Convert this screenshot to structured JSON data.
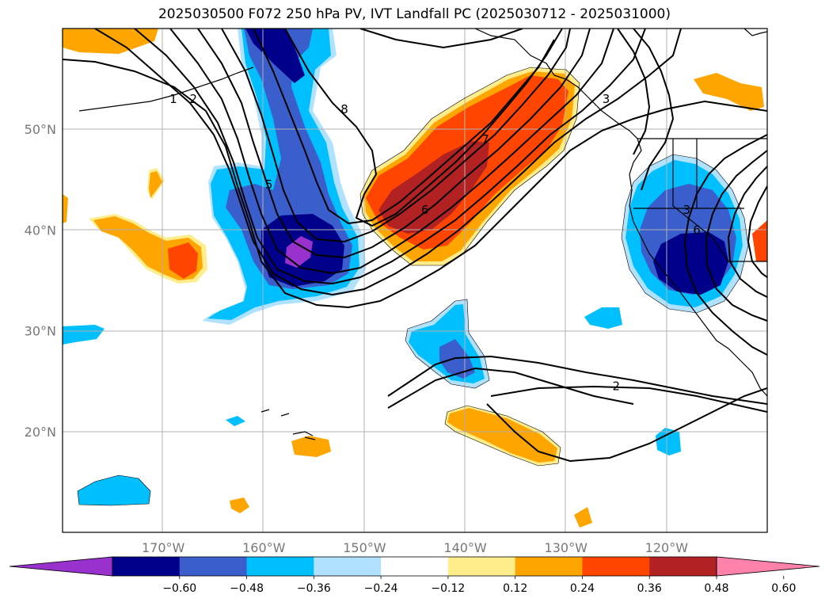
{
  "title": "2025030500 F072 250 hPa PV, IVT Landfall PC (2025030712 - 2025031000)",
  "map": {
    "lon_range": [
      -180,
      -110
    ],
    "lat_range": [
      10,
      60
    ],
    "grid": true,
    "lat_labels": [
      {
        "lat": 50,
        "label": "50°N"
      },
      {
        "lat": 40,
        "label": "40°N"
      },
      {
        "lat": 30,
        "label": "30°N"
      },
      {
        "lat": 20,
        "label": "20°N"
      }
    ],
    "lon_labels": [
      {
        "lon": -170,
        "label": "170°W"
      },
      {
        "lon": -160,
        "label": "160°W"
      },
      {
        "lon": -150,
        "label": "150°W"
      },
      {
        "lon": -140,
        "label": "140°W"
      },
      {
        "lon": -130,
        "label": "130°W"
      },
      {
        "lon": -120,
        "label": "120°W"
      }
    ],
    "contour_labels": [
      {
        "text": "1",
        "lon": -169,
        "lat": 53
      },
      {
        "text": "2",
        "lon": -167,
        "lat": 53
      },
      {
        "text": "8",
        "lon": -152,
        "lat": 52
      },
      {
        "text": "5",
        "lon": -159.5,
        "lat": 44.5
      },
      {
        "text": "7",
        "lon": -138,
        "lat": 49
      },
      {
        "text": "6",
        "lon": -144,
        "lat": 42
      },
      {
        "text": "3",
        "lon": -126,
        "lat": 53
      },
      {
        "text": "3",
        "lon": -118,
        "lat": 42
      },
      {
        "text": "6",
        "lon": -117,
        "lat": 40
      },
      {
        "text": "2",
        "lon": -125,
        "lat": 24.5
      }
    ]
  },
  "colorbar": {
    "colors": [
      "#9932cc",
      "#00008b",
      "#3a5fcd",
      "#00bfff",
      "#b0e2ff",
      "#ffffff",
      "#ffec8b",
      "#ffa500",
      "#ff4500",
      "#b22222",
      "#ff82ab"
    ],
    "tick_labels": [
      "−0.60",
      "−0.48",
      "−0.36",
      "−0.24",
      "−0.12",
      "0.12",
      "0.24",
      "0.36",
      "0.48",
      "0.60"
    ]
  }
}
